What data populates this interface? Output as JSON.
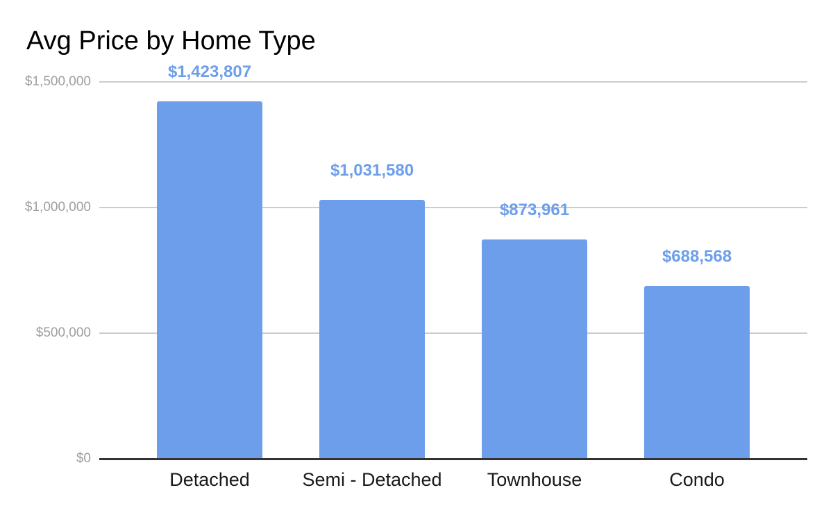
{
  "page": {
    "background": "#ffffff"
  },
  "chart_data": {
    "type": "bar",
    "title": "Avg Price by Home Type",
    "categories": [
      "Detached",
      "Semi - Detached",
      "Townhouse",
      "Condo"
    ],
    "values": [
      1423807,
      1031580,
      873961,
      688568
    ],
    "data_labels": [
      "$1,423,807",
      "$1,031,580",
      "$873,961",
      "$688,568"
    ],
    "series": [
      {
        "name": "Avg Price",
        "values": [
          1423807,
          1031580,
          873961,
          688568
        ]
      }
    ],
    "xlabel": "",
    "ylabel": "",
    "ylim": [
      0,
      1500000
    ],
    "yticks": [
      {
        "value": 1500000,
        "label": "$1,500,000"
      },
      {
        "value": 1000000,
        "label": "$1,000,000"
      },
      {
        "value": 500000,
        "label": "$500,000"
      },
      {
        "value": 0,
        "label": "$0"
      }
    ],
    "grid": "horizontal",
    "legend": "none",
    "colors": {
      "bar": "#6d9eeb",
      "data_label": "#6d9eeb",
      "gridline": "#cccccc",
      "axis_line": "#333333",
      "y_tick_label": "#9e9e9e",
      "x_tick_label": "#1a1a1a",
      "title": "#000000"
    }
  }
}
